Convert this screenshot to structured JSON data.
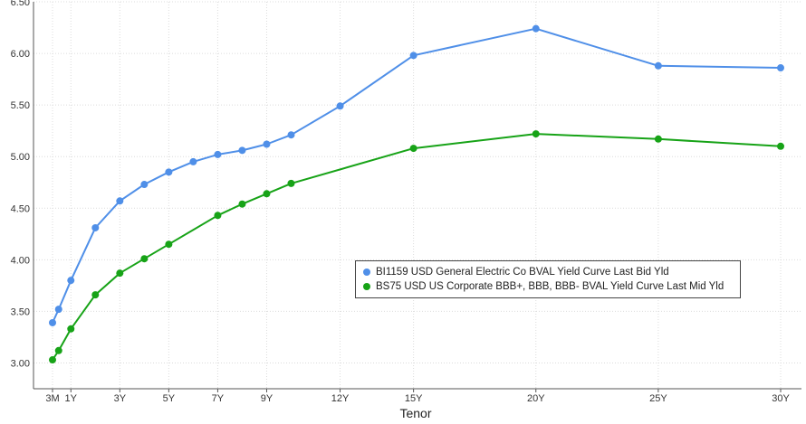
{
  "chart_data": {
    "type": "line",
    "title": "",
    "xlabel": "Tenor",
    "ylabel": "",
    "ylim": [
      2.75,
      6.5
    ],
    "yticks": [
      "3.00",
      "3.50",
      "4.00",
      "4.50",
      "5.00",
      "5.50",
      "6.00",
      "6.50"
    ],
    "xtick_labels": [
      {
        "label": "3M",
        "t": 0.25
      },
      {
        "label": "1Y",
        "t": 1
      },
      {
        "label": "3Y",
        "t": 3
      },
      {
        "label": "5Y",
        "t": 5
      },
      {
        "label": "7Y",
        "t": 7
      },
      {
        "label": "9Y",
        "t": 9
      },
      {
        "label": "12Y",
        "t": 12
      },
      {
        "label": "15Y",
        "t": 15
      },
      {
        "label": "20Y",
        "t": 20
      },
      {
        "label": "25Y",
        "t": 25
      },
      {
        "label": "30Y",
        "t": 30
      }
    ],
    "grid": true,
    "legend_position": "center-right",
    "series": [
      {
        "name": "BI1159 USD General Electric Co BVAL Yield Curve Last Bid Yld",
        "color": "#4f8fe8",
        "x": [
          0.25,
          0.5,
          1,
          2,
          3,
          4,
          5,
          6,
          7,
          8,
          9,
          10,
          12,
          15,
          20,
          25,
          30
        ],
        "y": [
          3.39,
          3.52,
          3.8,
          4.31,
          4.57,
          4.73,
          4.85,
          4.95,
          5.02,
          5.06,
          5.12,
          5.21,
          5.49,
          5.98,
          6.24,
          5.88,
          5.86
        ]
      },
      {
        "name": "BS75 USD US Corporate BBB+, BBB, BBB- BVAL Yield Curve Last Mid Yld",
        "color": "#17a317",
        "x": [
          0.25,
          0.5,
          1,
          2,
          3,
          4,
          5,
          7,
          8,
          9,
          10,
          15,
          20,
          25,
          30
        ],
        "y": [
          3.03,
          3.12,
          3.33,
          3.66,
          3.87,
          4.01,
          4.15,
          4.43,
          4.54,
          4.64,
          4.74,
          5.08,
          5.22,
          5.17,
          5.1
        ]
      }
    ]
  }
}
